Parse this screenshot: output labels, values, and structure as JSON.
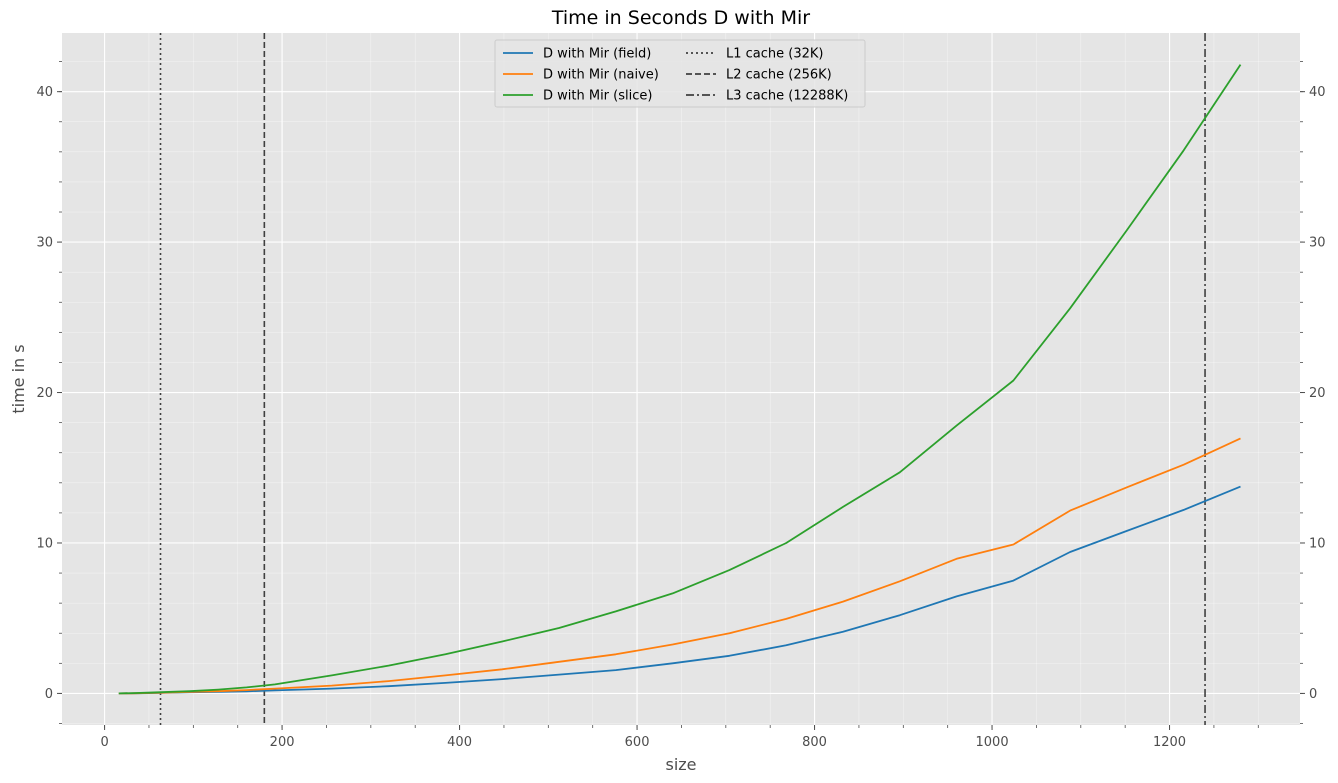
{
  "chart_data": {
    "type": "line",
    "title": "Time in Seconds D with Mir",
    "xlabel": "size",
    "ylabel": "time in s",
    "xlim": [
      -48,
      1347
    ],
    "ylim": [
      -2.1,
      43.9
    ],
    "x_ticks": [
      0,
      200,
      400,
      600,
      800,
      1000,
      1200
    ],
    "y_ticks": [
      0,
      10,
      20,
      30,
      40
    ],
    "x_tick_labels": [
      "0",
      "200",
      "400",
      "600",
      "800",
      "1000",
      "1200"
    ],
    "y_tick_labels": [
      "0",
      "10",
      "20",
      "30",
      "40"
    ],
    "grid": true,
    "legend_position": "upper center",
    "x": [
      16,
      32,
      48,
      64,
      96,
      128,
      160,
      192,
      224,
      256,
      320,
      384,
      448,
      512,
      576,
      640,
      704,
      768,
      832,
      896,
      960,
      1024,
      1088,
      1152,
      1216,
      1280
    ],
    "series": [
      {
        "name": "D with Mir (field)",
        "color": "#1f77b4",
        "values": [
          0,
          0.01,
          0.02,
          0.04,
          0.08,
          0.1,
          0.14,
          0.2,
          0.26,
          0.32,
          0.48,
          0.7,
          0.95,
          1.25,
          1.55,
          2.0,
          2.5,
          3.2,
          4.1,
          5.2,
          6.45,
          7.5,
          9.4,
          10.8,
          12.2,
          13.75
        ]
      },
      {
        "name": "D with Mir (naive)",
        "color": "#ff7f0e",
        "values": [
          0,
          0.01,
          0.03,
          0.05,
          0.1,
          0.15,
          0.22,
          0.32,
          0.42,
          0.52,
          0.82,
          1.2,
          1.6,
          2.1,
          2.6,
          3.25,
          4.0,
          4.95,
          6.1,
          7.45,
          8.95,
          9.9,
          12.15,
          13.7,
          15.2,
          16.95
        ]
      },
      {
        "name": "D with Mir (slice)",
        "color": "#2ca02c",
        "values": [
          0,
          0.02,
          0.05,
          0.08,
          0.15,
          0.25,
          0.4,
          0.6,
          0.9,
          1.2,
          1.85,
          2.6,
          3.45,
          4.35,
          5.45,
          6.65,
          8.2,
          10.0,
          12.4,
          14.7,
          17.8,
          20.8,
          25.6,
          30.8,
          36.1,
          41.8
        ]
      }
    ],
    "reference_lines": [
      {
        "name": "L1 cache (32K)",
        "x": 63,
        "style": "dotted",
        "color": "#404040"
      },
      {
        "name": "L2 cache (256K)",
        "x": 180,
        "style": "dashed",
        "color": "#404040"
      },
      {
        "name": "L3 cache (12288K)",
        "x": 1240,
        "style": "dashdot",
        "color": "#404040"
      }
    ]
  },
  "colors": {
    "plot_background": "#e5e5e5",
    "grid": "#ffffff",
    "axis_text": "#4d4d4d"
  }
}
